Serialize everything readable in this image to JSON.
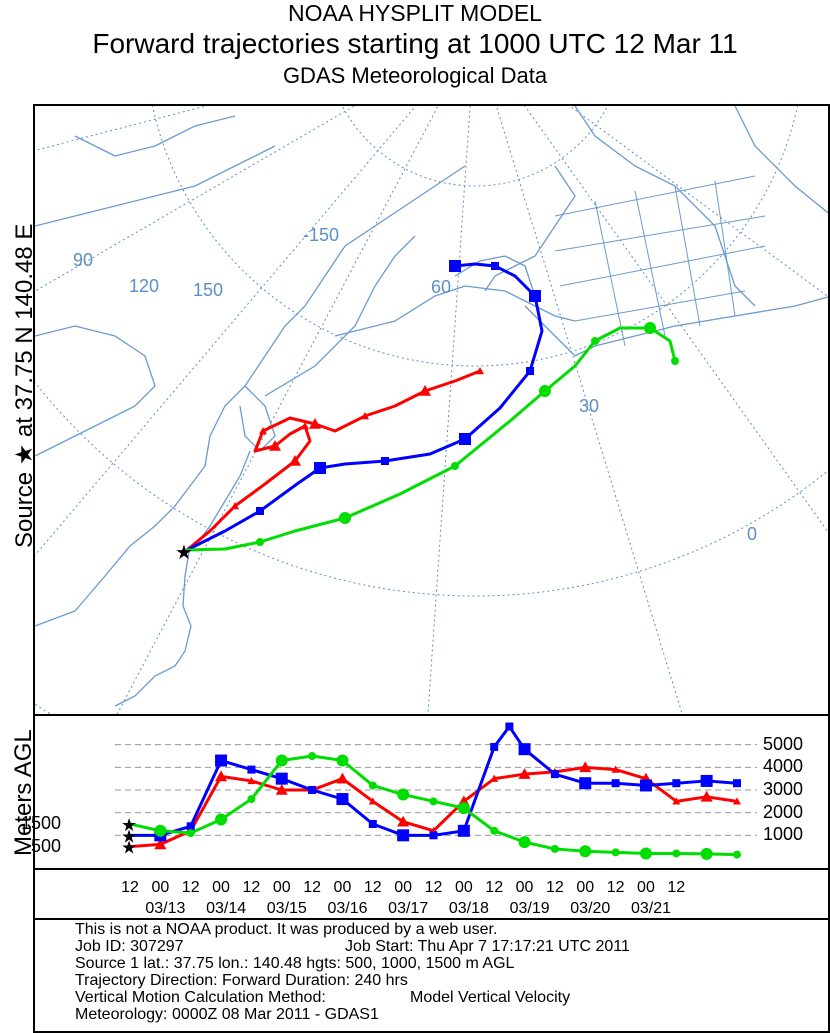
{
  "header": {
    "title1": "NOAA HYSPLIT MODEL",
    "title2": "Forward trajectories starting at 1000 UTC 12 Mar 11",
    "title3": "GDAS Meteorological Data"
  },
  "map": {
    "source_label": "Source ★ at   37.75 N   140.48 E",
    "grid_labels": [
      "-150",
      "90",
      "120",
      "150",
      "60",
      "30",
      "0"
    ]
  },
  "chart_data": {
    "type": "line",
    "title": "",
    "ylabel": "Meters AGL",
    "ylim": [
      0,
      6000
    ],
    "y_ticks": [
      1000,
      2000,
      3000,
      4000,
      5000
    ],
    "y_ticks_left": [
      500,
      1500
    ],
    "x_tick_labels": [
      "12",
      "00",
      "12",
      "00",
      "12",
      "00",
      "12",
      "00",
      "12",
      "00",
      "12",
      "00",
      "12",
      "00",
      "12",
      "00",
      "12",
      "00",
      "12"
    ],
    "date_labels": [
      "03/13",
      "03/14",
      "03/15",
      "03/16",
      "03/17",
      "03/18",
      "03/19",
      "03/20",
      "03/21"
    ],
    "x_unit": "hours since 1000 UTC 12 Mar 11",
    "x_range": [
      0,
      240
    ],
    "series": [
      {
        "name": "",
        "color": "#ff0000",
        "marker": "triangle",
        "start_height": 500,
        "x": [
          0,
          12,
          24,
          36,
          48,
          60,
          72,
          84,
          96,
          108,
          120,
          132,
          144,
          156,
          168,
          180,
          192,
          204,
          216,
          228,
          240
        ],
        "y": [
          500,
          600,
          1200,
          3600,
          3400,
          3000,
          3000,
          3500,
          2500,
          1600,
          1200,
          2500,
          3500,
          3700,
          3800,
          4000,
          3900,
          3500,
          2500,
          2700,
          2500
        ]
      },
      {
        "name": "",
        "color": "#0000ff",
        "marker": "square",
        "start_height": 1000,
        "x": [
          0,
          12,
          24,
          36,
          48,
          60,
          72,
          84,
          96,
          108,
          120,
          132,
          144,
          150,
          156,
          168,
          180,
          192,
          204,
          216,
          228,
          240
        ],
        "y": [
          1000,
          1000,
          1400,
          4300,
          3900,
          3500,
          3000,
          2600,
          1500,
          1000,
          1000,
          1200,
          4900,
          5800,
          4800,
          3700,
          3300,
          3300,
          3200,
          3300,
          3400,
          3300
        ]
      },
      {
        "name": "",
        "color": "#00dd00",
        "marker": "circle",
        "start_height": 1500,
        "x": [
          0,
          12,
          24,
          36,
          48,
          60,
          72,
          84,
          96,
          108,
          120,
          132,
          144,
          156,
          168,
          180,
          192,
          204,
          216,
          228,
          240
        ],
        "y": [
          1500,
          1200,
          1100,
          1700,
          2600,
          4300,
          4500,
          4300,
          3200,
          2800,
          2500,
          2200,
          1200,
          700,
          400,
          300,
          250,
          200,
          200,
          180,
          150
        ]
      }
    ]
  },
  "info": {
    "line1": "This is not a NOAA product. It was produced by a web user.",
    "job_id": "Job ID: 307297",
    "job_start": "Job Start: Thu Apr  7 17:17:21 UTC 2011",
    "source": "Source 1 lat.: 37.75  lon.: 140.48  hgts: 500, 1000, 1500 m AGL",
    "direction": "Trajectory Direction: Forward       Duration: 240 hrs",
    "vertical_label": "Vertical Motion Calculation Method:",
    "vertical_value": "Model Vertical Velocity",
    "meteo": "Meteorology: 0000Z 08 Mar 2011 - GDAS1"
  }
}
